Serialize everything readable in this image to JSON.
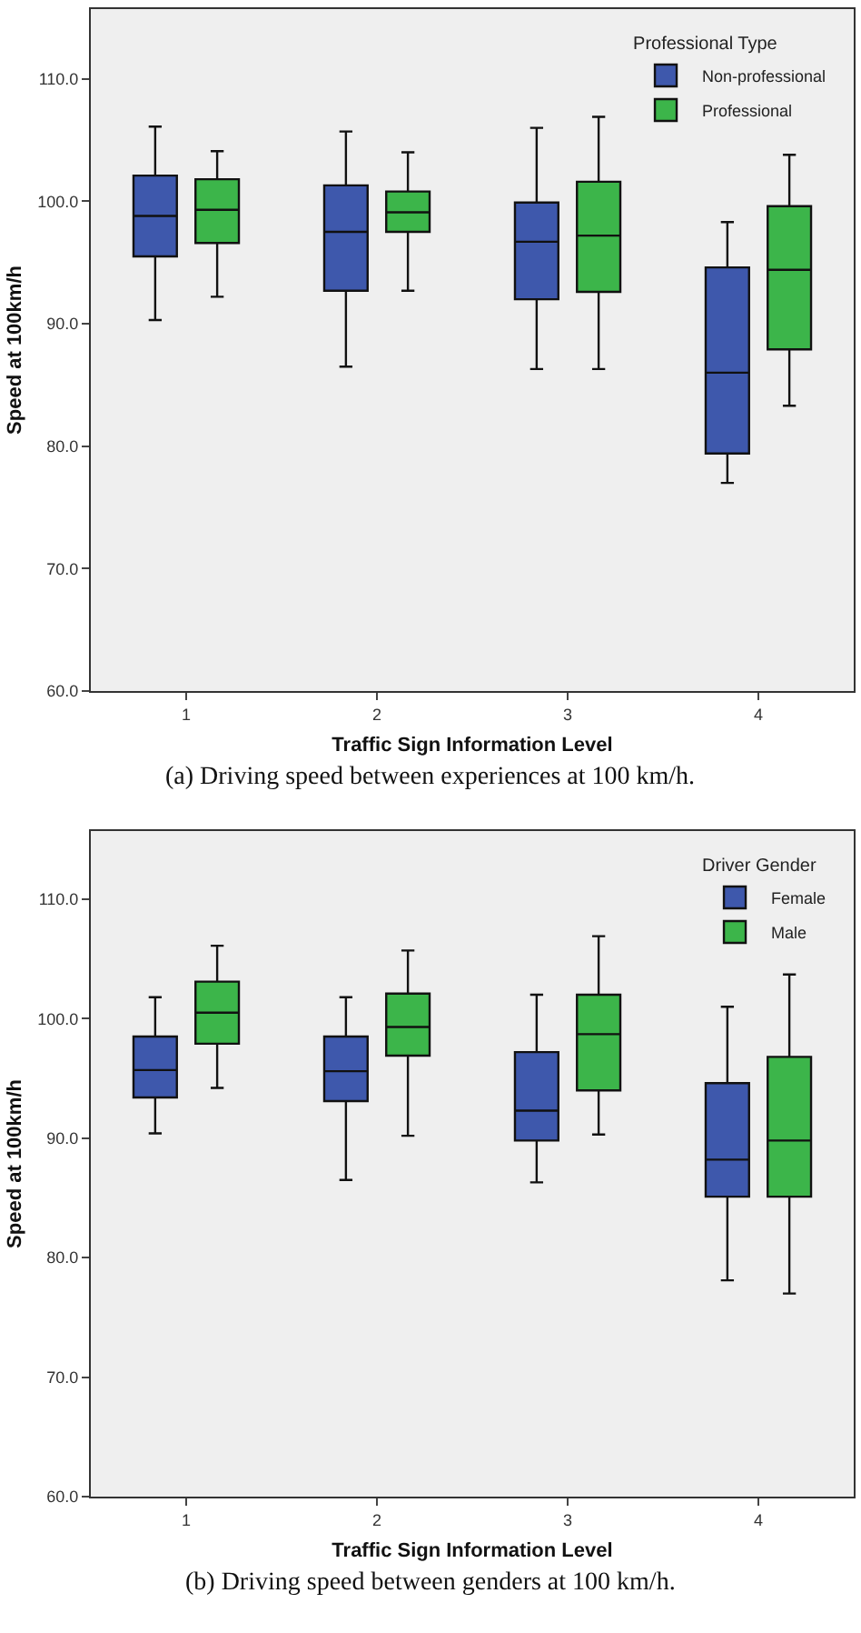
{
  "chart_data": [
    {
      "type": "box",
      "categories": [
        "1",
        "2",
        "3",
        "4"
      ],
      "xlabel": "Traffic Sign Information Level",
      "ylabel": "Speed at 100km/h",
      "legend_title": "Professional Type",
      "legend": "top right",
      "grid": false,
      "ylim": [
        60,
        115.7
      ],
      "yticks": [
        {
          "value": 60,
          "label": "60.0"
        },
        {
          "value": 70,
          "label": "70.0"
        },
        {
          "value": 80,
          "label": "80.0"
        },
        {
          "value": 90,
          "label": "90.0"
        },
        {
          "value": 100,
          "label": "100.0"
        },
        {
          "value": 110,
          "label": "110.0"
        }
      ],
      "series": [
        {
          "name": "Non-professional",
          "color": "#3e58ac",
          "boxes": [
            {
              "low": 90.3,
              "q1": 95.5,
              "median": 98.8,
              "q3": 102.1,
              "high": 106.1
            },
            {
              "low": 86.5,
              "q1": 92.7,
              "median": 97.5,
              "q3": 101.3,
              "high": 105.7
            },
            {
              "low": 86.3,
              "q1": 92.0,
              "median": 96.7,
              "q3": 99.9,
              "high": 106.0
            },
            {
              "low": 77.0,
              "q1": 79.4,
              "median": 86.0,
              "q3": 94.6,
              "high": 98.3
            }
          ]
        },
        {
          "name": "Professional",
          "color": "#3cb54a",
          "boxes": [
            {
              "low": 92.2,
              "q1": 96.6,
              "median": 99.3,
              "q3": 101.8,
              "high": 104.1
            },
            {
              "low": 92.7,
              "q1": 97.5,
              "median": 99.1,
              "q3": 100.8,
              "high": 104.0
            },
            {
              "low": 86.3,
              "q1": 92.6,
              "median": 97.2,
              "q3": 101.6,
              "high": 106.9
            },
            {
              "low": 83.3,
              "q1": 87.9,
              "median": 94.4,
              "q3": 99.6,
              "high": 103.8
            }
          ]
        }
      ],
      "annotations": [
        "(a) Driving speed between experiences at 100 km/h."
      ]
    },
    {
      "type": "box",
      "categories": [
        "1",
        "2",
        "3",
        "4"
      ],
      "xlabel": "Traffic Sign Information Level",
      "ylabel": "Speed at 100km/h",
      "legend_title": "Driver Gender",
      "legend": "top right",
      "grid": false,
      "ylim": [
        60,
        115.7
      ],
      "yticks": [
        {
          "value": 60,
          "label": "60.0"
        },
        {
          "value": 70,
          "label": "70.0"
        },
        {
          "value": 80,
          "label": "80.0"
        },
        {
          "value": 90,
          "label": "90.0"
        },
        {
          "value": 100,
          "label": "100.0"
        },
        {
          "value": 110,
          "label": "110.0"
        }
      ],
      "series": [
        {
          "name": "Female",
          "color": "#3e58ac",
          "boxes": [
            {
              "low": 90.4,
              "q1": 93.4,
              "median": 95.7,
              "q3": 98.5,
              "high": 101.8
            },
            {
              "low": 86.5,
              "q1": 93.1,
              "median": 95.6,
              "q3": 98.5,
              "high": 101.8
            },
            {
              "low": 86.3,
              "q1": 89.8,
              "median": 92.3,
              "q3": 97.2,
              "high": 102.0
            },
            {
              "low": 78.1,
              "q1": 85.1,
              "median": 88.2,
              "q3": 94.6,
              "high": 101.0
            }
          ]
        },
        {
          "name": "Male",
          "color": "#3cb54a",
          "boxes": [
            {
              "low": 94.2,
              "q1": 97.9,
              "median": 100.5,
              "q3": 103.1,
              "high": 106.1
            },
            {
              "low": 90.2,
              "q1": 96.9,
              "median": 99.3,
              "q3": 102.1,
              "high": 105.7
            },
            {
              "low": 90.3,
              "q1": 94.0,
              "median": 98.7,
              "q3": 102.0,
              "high": 106.9
            },
            {
              "low": 77.0,
              "q1": 85.1,
              "median": 89.8,
              "q3": 96.8,
              "high": 103.7
            }
          ]
        }
      ],
      "annotations": [
        "(b) Driving speed between genders at 100 km/h."
      ]
    }
  ]
}
